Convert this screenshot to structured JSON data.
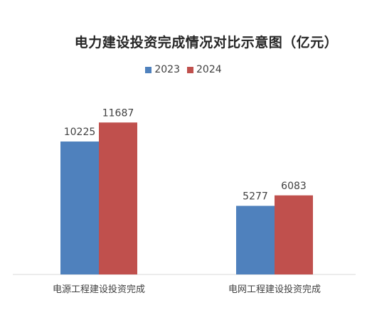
{
  "chart_data": {
    "type": "bar",
    "title": "电力建设投资完成情况对比示意图（亿元）",
    "categories": [
      "电源工程建设投资完成",
      "电网工程建设投资完成"
    ],
    "series": [
      {
        "name": "2023",
        "values": [
          10225,
          5277
        ],
        "color": "#4f81bd"
      },
      {
        "name": "2024",
        "values": [
          11687,
          6083
        ],
        "color": "#c0504d"
      }
    ],
    "ylim": [
      0,
      14000
    ],
    "grid": false,
    "legend_position": "top-center"
  }
}
